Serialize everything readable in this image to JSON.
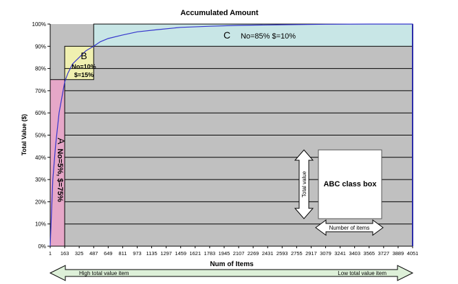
{
  "chart_data": {
    "type": "line",
    "title": "Accumulated Amount",
    "xlabel": "Num of Items",
    "ylabel": "Total Value ($)",
    "ylim": [
      0,
      100
    ],
    "xlim": [
      1,
      4051
    ],
    "y_ticks": [
      "0%",
      "10%",
      "20%",
      "30%",
      "40%",
      "50%",
      "60%",
      "70%",
      "80%",
      "90%",
      "100%"
    ],
    "x_ticks": [
      "1",
      "163",
      "325",
      "487",
      "649",
      "811",
      "973",
      "1135",
      "1297",
      "1459",
      "1621",
      "1783",
      "1945",
      "2107",
      "2269",
      "2431",
      "2593",
      "2755",
      "2917",
      "3079",
      "3241",
      "3403",
      "3565",
      "3727",
      "3889",
      "4051"
    ],
    "grid": true,
    "series": [
      {
        "x": [
          1,
          30,
          60,
          100,
          163,
          200,
          250,
          325,
          400,
          487,
          560,
          649,
          800,
          973,
          1200,
          1459,
          1783,
          2107,
          2593,
          3079,
          3565,
          4051
        ],
        "y": [
          0,
          30,
          45,
          60,
          74,
          78,
          82,
          85,
          88,
          90,
          92,
          93.5,
          95,
          96.5,
          97.5,
          98.5,
          99,
          99.4,
          99.7,
          99.9,
          100,
          100
        ],
        "color": "#3333cc"
      }
    ],
    "regions": [
      {
        "class": "A",
        "line1": "A",
        "line2": "No=5%, $=75%",
        "x": [
          1,
          163
        ],
        "y": [
          0,
          75
        ],
        "color": "#e6a7c8"
      },
      {
        "class": "B",
        "line1": "B",
        "line2": "No=10%",
        "line3": "$=15%",
        "x": [
          163,
          487
        ],
        "y": [
          75,
          90
        ],
        "color": "#f0f0b0"
      },
      {
        "class": "C",
        "line1": "C",
        "line2": "No=85% $=10%",
        "x": [
          487,
          4051
        ],
        "y": [
          90,
          100
        ],
        "color": "#c8e6e6"
      }
    ],
    "legend_box": {
      "label": "ABC class box",
      "vertical_arrow": "Total value",
      "horizontal_arrow": "Number of items"
    },
    "bottom_arrow": {
      "left_label": "High total value item",
      "right_label": "Low total value item",
      "color": "#ddf0d8"
    }
  }
}
